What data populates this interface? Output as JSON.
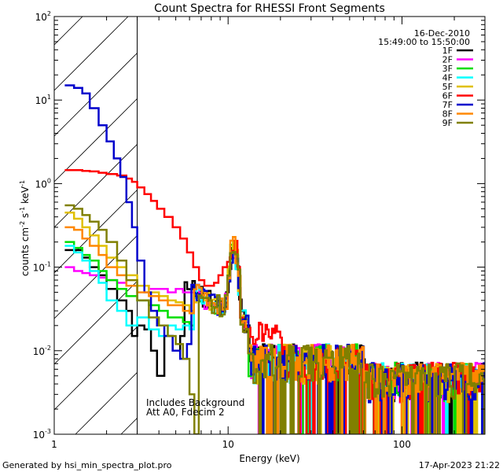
{
  "chart_data": {
    "type": "line",
    "title": "Count Spectra for RHESSI Front Segments",
    "xlabel": "Energy (keV)",
    "ylabel_parts": {
      "a": "counts cm",
      "b": "-2",
      "c": " s",
      "d": "-1",
      "e": " keV",
      "f": "-1"
    },
    "x_scale": "log",
    "y_scale": "log",
    "xlim": [
      1,
      300
    ],
    "ylim": [
      0.001,
      100
    ],
    "x_major_ticks": [
      {
        "value": 1,
        "label": "1"
      },
      {
        "value": 10,
        "label": "10"
      },
      {
        "value": 100,
        "label": "100"
      }
    ],
    "y_major_ticks": [
      {
        "value": 0.001,
        "base": "10",
        "exp": "-3"
      },
      {
        "value": 0.01,
        "base": "10",
        "exp": "-2"
      },
      {
        "value": 0.1,
        "base": "10",
        "exp": "-1"
      },
      {
        "value": 1,
        "base": "10",
        "exp": "0"
      },
      {
        "value": 10,
        "base": "10",
        "exp": "1"
      },
      {
        "value": 100,
        "base": "10",
        "exp": "2"
      }
    ],
    "date": "16-Dec-2010",
    "time_range": "15:49:00 to 15:50:00",
    "hatched_region_keV": [
      1,
      3
    ],
    "annotations": [
      "Includes Background",
      "Att A0, Fdecim 2"
    ],
    "series": [
      {
        "name": "1F",
        "color": "#000000",
        "lowE": [
          [
            1.15,
            0.16
          ],
          [
            1.3,
            0.16
          ],
          [
            1.45,
            0.13
          ],
          [
            1.6,
            0.1
          ],
          [
            1.8,
            0.08
          ],
          [
            2.0,
            0.055
          ],
          [
            2.3,
            0.04
          ],
          [
            2.6,
            0.03
          ],
          [
            2.8,
            0.015
          ],
          [
            3.0,
            0.02
          ],
          [
            3.3,
            0.018
          ],
          [
            3.6,
            0.01
          ],
          [
            3.9,
            0.005
          ],
          [
            4.3,
            0.015
          ],
          [
            4.8,
            0.01
          ],
          [
            5.3,
            0.015
          ]
        ],
        "peakScale": 0.85
      },
      {
        "name": "2F",
        "color": "#ff00ff",
        "lowE": [
          [
            1.15,
            0.1
          ],
          [
            1.3,
            0.09
          ],
          [
            1.45,
            0.085
          ],
          [
            1.6,
            0.08
          ],
          [
            1.8,
            0.075
          ],
          [
            2.0,
            0.07
          ],
          [
            2.3,
            0.065
          ],
          [
            2.6,
            0.06
          ],
          [
            3.0,
            0.06
          ],
          [
            3.5,
            0.055
          ],
          [
            4.0,
            0.055
          ],
          [
            4.5,
            0.05
          ],
          [
            5.0,
            0.055
          ],
          [
            5.5,
            0.05
          ],
          [
            6.0,
            0.05
          ]
        ],
        "peakScale": 0.9
      },
      {
        "name": "3F",
        "color": "#00dd00",
        "lowE": [
          [
            1.15,
            0.2
          ],
          [
            1.3,
            0.17
          ],
          [
            1.45,
            0.14
          ],
          [
            1.6,
            0.12
          ],
          [
            1.8,
            0.09
          ],
          [
            2.0,
            0.07
          ],
          [
            2.3,
            0.055
          ],
          [
            2.6,
            0.045
          ],
          [
            3.0,
            0.04
          ],
          [
            3.5,
            0.035
          ],
          [
            4.0,
            0.03
          ],
          [
            4.5,
            0.025
          ],
          [
            5.0,
            0.025
          ],
          [
            5.5,
            0.022
          ],
          [
            6.0,
            0.02
          ]
        ],
        "peakScale": 0.95
      },
      {
        "name": "4F",
        "color": "#00ffff",
        "lowE": [
          [
            1.15,
            0.18
          ],
          [
            1.3,
            0.15
          ],
          [
            1.45,
            0.12
          ],
          [
            1.6,
            0.09
          ],
          [
            1.8,
            0.065
          ],
          [
            2.0,
            0.04
          ],
          [
            2.3,
            0.03
          ],
          [
            2.6,
            0.02
          ],
          [
            3.0,
            0.025
          ],
          [
            3.5,
            0.018
          ],
          [
            4.0,
            0.015
          ],
          [
            4.5,
            0.02
          ],
          [
            5.0,
            0.018
          ],
          [
            5.5,
            0.02
          ],
          [
            6.0,
            0.018
          ]
        ],
        "peakScale": 0.9
      },
      {
        "name": "5F",
        "color": "#e0c000",
        "lowE": [
          [
            1.15,
            0.45
          ],
          [
            1.3,
            0.38
          ],
          [
            1.45,
            0.3
          ],
          [
            1.6,
            0.24
          ],
          [
            1.8,
            0.18
          ],
          [
            2.0,
            0.13
          ],
          [
            2.3,
            0.1
          ],
          [
            2.6,
            0.08
          ],
          [
            3.0,
            0.06
          ],
          [
            3.5,
            0.05
          ],
          [
            4.0,
            0.045
          ],
          [
            4.5,
            0.04
          ],
          [
            5.0,
            0.038
          ],
          [
            5.5,
            0.035
          ],
          [
            6.0,
            0.03
          ]
        ],
        "peakScale": 1.0
      },
      {
        "name": "6F",
        "color": "#ff0000",
        "lowE": [
          [
            1.15,
            1.45
          ],
          [
            1.3,
            1.45
          ],
          [
            1.45,
            1.42
          ],
          [
            1.6,
            1.4
          ],
          [
            1.8,
            1.35
          ],
          [
            2.0,
            1.3
          ],
          [
            2.3,
            1.25
          ],
          [
            2.6,
            1.15
          ],
          [
            2.8,
            1.05
          ],
          [
            3.0,
            0.9
          ],
          [
            3.3,
            0.75
          ],
          [
            3.6,
            0.62
          ],
          [
            3.9,
            0.5
          ],
          [
            4.3,
            0.4
          ],
          [
            4.8,
            0.3
          ],
          [
            5.3,
            0.22
          ],
          [
            5.8,
            0.15
          ],
          [
            6.3,
            0.1
          ],
          [
            6.8,
            0.07
          ],
          [
            7.3,
            0.06
          ],
          [
            7.8,
            0.06
          ],
          [
            8.3,
            0.065
          ],
          [
            8.8,
            0.08
          ],
          [
            9.3,
            0.1
          ]
        ],
        "peakScale": 1.1
      },
      {
        "name": "7F",
        "color": "#0000cc",
        "lowE": [
          [
            1.15,
            15
          ],
          [
            1.3,
            14
          ],
          [
            1.45,
            12
          ],
          [
            1.6,
            8
          ],
          [
            1.8,
            5
          ],
          [
            2.0,
            3.2
          ],
          [
            2.2,
            2.0
          ],
          [
            2.4,
            1.2
          ],
          [
            2.6,
            0.6
          ],
          [
            2.8,
            0.3
          ],
          [
            3.0,
            0.12
          ],
          [
            3.3,
            0.05
          ],
          [
            3.6,
            0.03
          ],
          [
            3.9,
            0.02
          ],
          [
            4.3,
            0.015
          ],
          [
            4.8,
            0.01
          ],
          [
            5.3,
            0.008
          ],
          [
            5.8,
            0.012
          ]
        ],
        "peakScale": 0.9
      },
      {
        "name": "8F",
        "color": "#ff8800",
        "lowE": [
          [
            1.15,
            0.3
          ],
          [
            1.3,
            0.28
          ],
          [
            1.45,
            0.22
          ],
          [
            1.6,
            0.18
          ],
          [
            1.8,
            0.14
          ],
          [
            2.0,
            0.1
          ],
          [
            2.3,
            0.08
          ],
          [
            2.6,
            0.06
          ],
          [
            3.0,
            0.05
          ],
          [
            3.5,
            0.045
          ],
          [
            4.0,
            0.04
          ],
          [
            4.5,
            0.035
          ],
          [
            5.0,
            0.035
          ],
          [
            5.5,
            0.03
          ],
          [
            6.0,
            0.028
          ]
        ],
        "peakScale": 0.95
      },
      {
        "name": "9F",
        "color": "#808000",
        "lowE": [
          [
            1.15,
            0.55
          ],
          [
            1.3,
            0.5
          ],
          [
            1.45,
            0.42
          ],
          [
            1.6,
            0.35
          ],
          [
            1.8,
            0.28
          ],
          [
            2.0,
            0.2
          ],
          [
            2.3,
            0.12
          ],
          [
            2.6,
            0.07
          ],
          [
            3.0,
            0.04
          ],
          [
            3.5,
            0.025
          ],
          [
            4.0,
            0.02
          ],
          [
            4.5,
            0.015
          ],
          [
            5.0,
            0.012
          ],
          [
            5.5,
            0.008
          ],
          [
            6.0,
            0.003
          ],
          [
            6.4,
            0.001
          ]
        ],
        "peakScale": 1.05
      }
    ]
  },
  "footer": {
    "left": "Generated by hsi_min_spectra_plot.pro",
    "right": "17-Apr-2023 21:22"
  }
}
